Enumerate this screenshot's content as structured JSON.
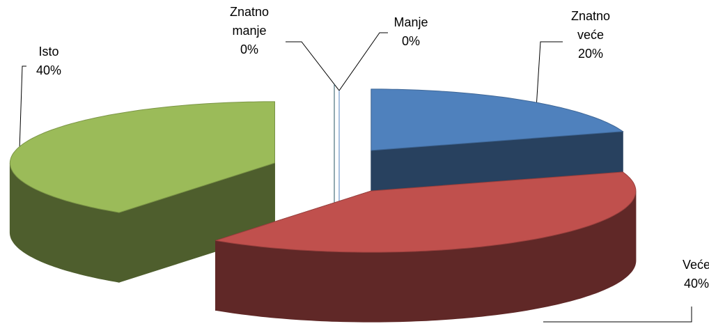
{
  "chart_data": {
    "type": "pie3d",
    "categories": [
      "Znatno veće",
      "Veće",
      "Isto",
      "Manje",
      "Znatno manje"
    ],
    "values": [
      20,
      40,
      40,
      0,
      0
    ],
    "value_labels": [
      "20%",
      "40%",
      "40%",
      "0%",
      "0%"
    ],
    "colors": [
      "#4f81bd",
      "#c0504d",
      "#9bbb59",
      "#8064a2",
      "#4bacc6"
    ]
  }
}
